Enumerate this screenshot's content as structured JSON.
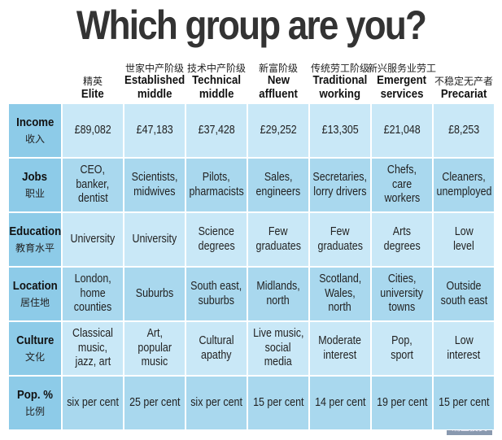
{
  "title": "Which group are you?",
  "columns": [
    {
      "cn": "精英",
      "en": [
        "Elite"
      ]
    },
    {
      "cn": "世家中产阶级",
      "en": [
        "Established",
        "middle"
      ]
    },
    {
      "cn": "技术中产阶级",
      "en": [
        "Technical",
        "middle"
      ]
    },
    {
      "cn": "新富阶级",
      "en": [
        "New",
        "affluent"
      ]
    },
    {
      "cn": "传统劳工阶级",
      "en": [
        "Traditional",
        "working"
      ]
    },
    {
      "cn": "新兴服务业劳工",
      "en": [
        "Emergent",
        "services"
      ]
    },
    {
      "cn": "不稳定无产者",
      "en": [
        "Precariat"
      ]
    }
  ],
  "rows": [
    {
      "en": "Income",
      "cn": "收入",
      "cells": [
        [
          "£89,082"
        ],
        [
          "£47,183"
        ],
        [
          "£37,428"
        ],
        [
          "£29,252"
        ],
        [
          "£13,305"
        ],
        [
          "£21,048"
        ],
        [
          "£8,253"
        ]
      ]
    },
    {
      "en": "Jobs",
      "cn": "职业",
      "cells": [
        [
          "CEO,",
          "banker,",
          "dentist"
        ],
        [
          "Scientists,",
          "midwives"
        ],
        [
          "Pilots,",
          "pharmacists"
        ],
        [
          "Sales,",
          "engineers"
        ],
        [
          "Secretaries,",
          "lorry drivers"
        ],
        [
          "Chefs,",
          "care",
          "workers"
        ],
        [
          "Cleaners,",
          "unemployed"
        ]
      ]
    },
    {
      "en": "Education",
      "cn": "教育水平",
      "cells": [
        [
          "University"
        ],
        [
          "University"
        ],
        [
          "Science",
          "degrees"
        ],
        [
          "Few",
          "graduates"
        ],
        [
          "Few",
          "graduates"
        ],
        [
          "Arts",
          "degrees"
        ],
        [
          "Low",
          "level"
        ]
      ]
    },
    {
      "en": "Location",
      "cn": "居住地",
      "cells": [
        [
          "London,",
          "home",
          "counties"
        ],
        [
          "Suburbs"
        ],
        [
          "South east,",
          "suburbs"
        ],
        [
          "Midlands,",
          "north"
        ],
        [
          "Scotland,",
          "Wales,",
          "north"
        ],
        [
          "Cities,",
          "university",
          "towns"
        ],
        [
          "Outside",
          "south east"
        ]
      ]
    },
    {
      "en": "Culture",
      "cn": "文化",
      "cells": [
        [
          "Classical",
          "music,",
          "jazz, art"
        ],
        [
          "Art,",
          "popular",
          "music"
        ],
        [
          "Cultural",
          "apathy"
        ],
        [
          "Live music,",
          "social",
          "media"
        ],
        [
          "Moderate",
          "interest"
        ],
        [
          "Pop,",
          "sport"
        ],
        [
          "Low",
          "interest"
        ]
      ]
    },
    {
      "en": "Pop. %",
      "cn": "比例",
      "cells": [
        [
          "six per cent"
        ],
        [
          "25 per cent"
        ],
        [
          "six per cent"
        ],
        [
          "15 per cent"
        ],
        [
          "14 per cent"
        ],
        [
          "19 per cent"
        ],
        [
          "15 per cent"
        ]
      ]
    }
  ],
  "watermark": "涌正投资"
}
